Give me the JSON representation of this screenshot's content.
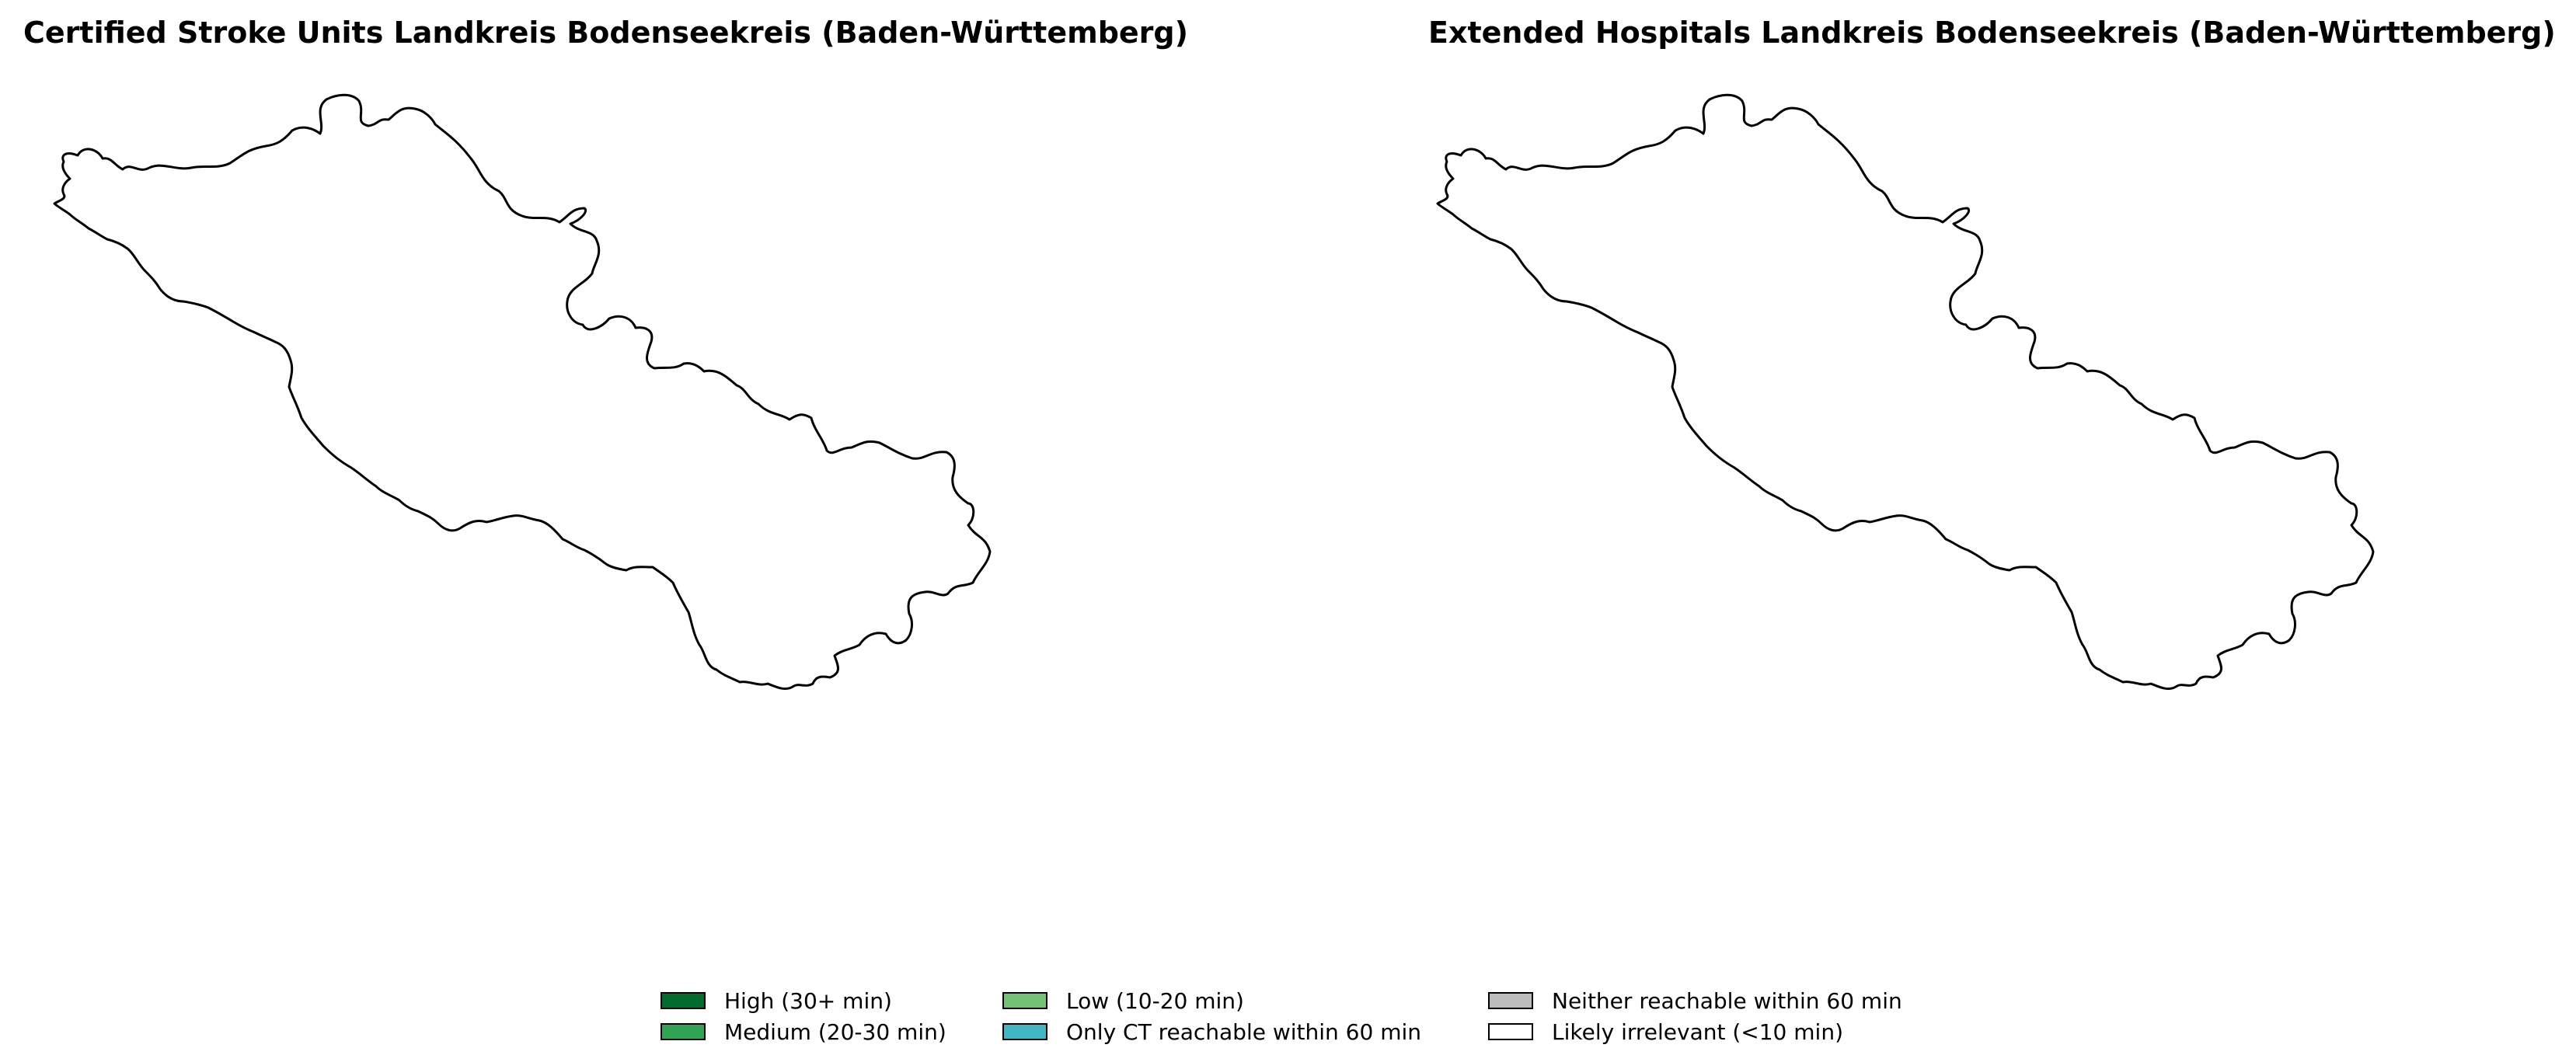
{
  "figure": {
    "left_title": "Certified Stroke Units Landkreis Bodenseekreis (Baden-Württemberg)",
    "right_title": "Extended Hospitals Landkreis Bodenseekreis (Baden-Württemberg)"
  },
  "region": {
    "name": "Landkreis Bodenseekreis",
    "fill": "#ffffff",
    "outline_color": "#000000"
  },
  "legend": {
    "items": [
      {
        "label": "High (30+ min)",
        "color": "#006d2c"
      },
      {
        "label": "Medium (20-30 min)",
        "color": "#31a354"
      },
      {
        "label": "Low (10-20 min)",
        "color": "#74c476"
      },
      {
        "label": "Only CT reachable within 60 min",
        "color": "#41b6c4"
      },
      {
        "label": "Neither reachable within 60 min",
        "color": "#bdbdbd"
      },
      {
        "label": "Likely irrelevant (<10 min)",
        "color": "#ffffff"
      }
    ]
  }
}
